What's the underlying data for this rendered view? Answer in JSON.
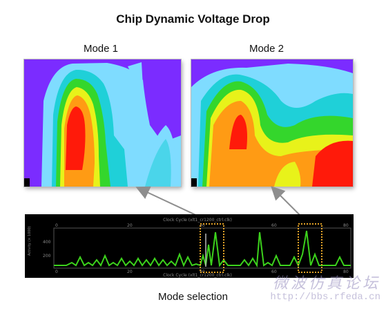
{
  "title": "Chip Dynamic Voltage Drop",
  "mode1_label": "Mode 1",
  "mode2_label": "Mode 2",
  "mode_selection_label": "Mode selection",
  "waveform": {
    "header_text": "Clock Cycle (xlt1_cr1200_ctrl.clk)",
    "footer_text": "Clock Cycle (xlt1_cr1200_ctrl.clk)",
    "y_axis_label": "Activity (× 1000)",
    "top_ticks": [
      "0",
      "20",
      "40",
      "60",
      "80"
    ],
    "bottom_ticks": [
      "0",
      "20",
      "40",
      "60",
      "80"
    ],
    "y_ticks": [
      "400",
      "200"
    ]
  },
  "watermark": {
    "chinese": "微波仿真论坛",
    "url": "http://bbs.rfeda.cn"
  },
  "colors": {
    "bg_purple": "#7b2cff",
    "light_blue": "#7fdcff",
    "cyan": "#1fd0d8",
    "green": "#34d62c",
    "yellow": "#e8f21a",
    "orange": "#ff9b14",
    "red": "#ff1a0a",
    "wave_green": "#3cd21c",
    "highlight_box": "#e3a227",
    "arrow_gray": "#8e8e8e"
  }
}
